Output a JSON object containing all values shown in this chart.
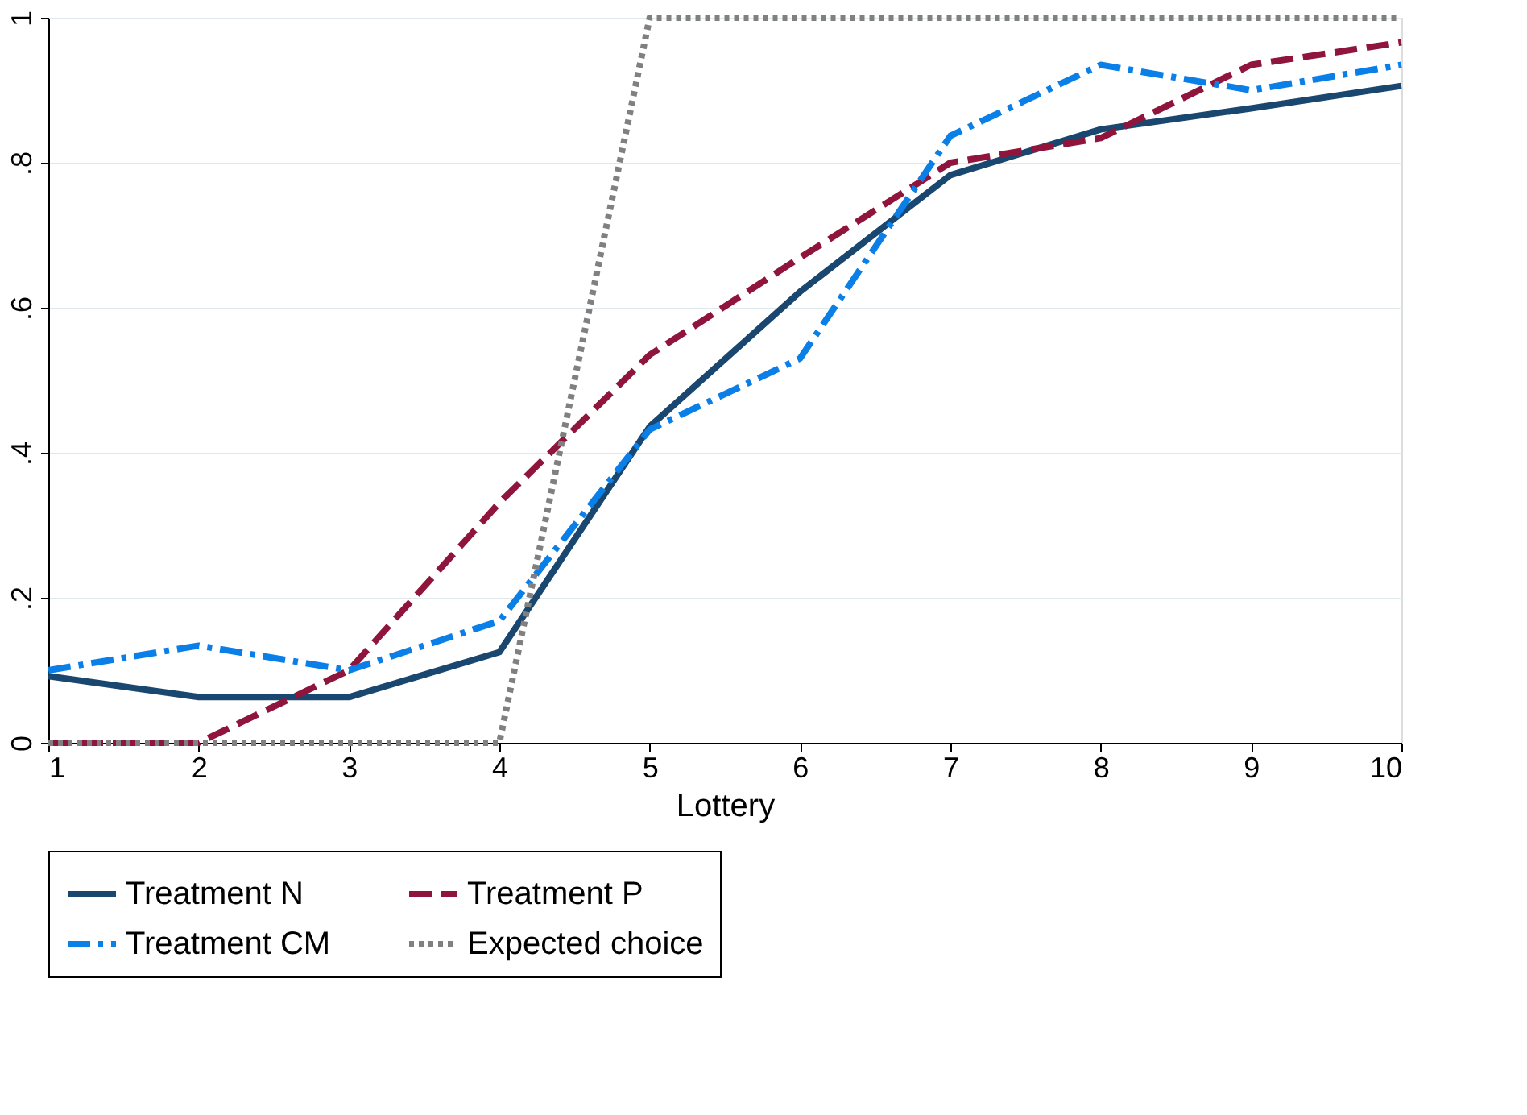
{
  "chart_data": {
    "type": "line",
    "xlabel": "Lottery",
    "x": [
      1,
      2,
      3,
      4,
      5,
      6,
      7,
      8,
      9,
      10
    ],
    "xlim": [
      1,
      10
    ],
    "xticks": [
      1,
      2,
      3,
      4,
      5,
      6,
      7,
      8,
      9,
      10
    ],
    "ylim": [
      0,
      1
    ],
    "yticks": [
      0,
      {
        "value": 0.2,
        "label": ".2"
      },
      {
        "value": 0.4,
        "label": ".4"
      },
      {
        "value": 0.6,
        "label": ".6"
      },
      {
        "value": 0.8,
        "label": ".8"
      },
      1
    ],
    "grid": "y",
    "legend": "bottom",
    "marker": "none",
    "series": [
      {
        "name": "Treatment N",
        "color": "#1a476f",
        "line_style": "solid",
        "values": [
          0.092,
          0.063,
          0.063,
          0.125,
          0.436,
          0.622,
          0.783,
          0.846,
          0.875,
          0.906
        ]
      },
      {
        "name": "Treatment P",
        "color": "#90153c",
        "line_style": "dashed",
        "values": [
          0,
          0,
          0.1,
          0.331,
          0.535,
          0.669,
          0.8,
          0.834,
          0.935,
          0.966
        ]
      },
      {
        "name": "Treatment CM",
        "color": "#0a7fe8",
        "line_style": "dashdot",
        "values": [
          0.1,
          0.134,
          0.1,
          0.168,
          0.432,
          0.53,
          0.837,
          0.935,
          0.9,
          0.935
        ]
      },
      {
        "name": "Expected choice",
        "color": "#808080",
        "line_style": "dotted",
        "values": [
          0,
          0,
          0,
          0,
          1,
          1,
          1,
          1,
          1,
          1
        ]
      }
    ]
  }
}
